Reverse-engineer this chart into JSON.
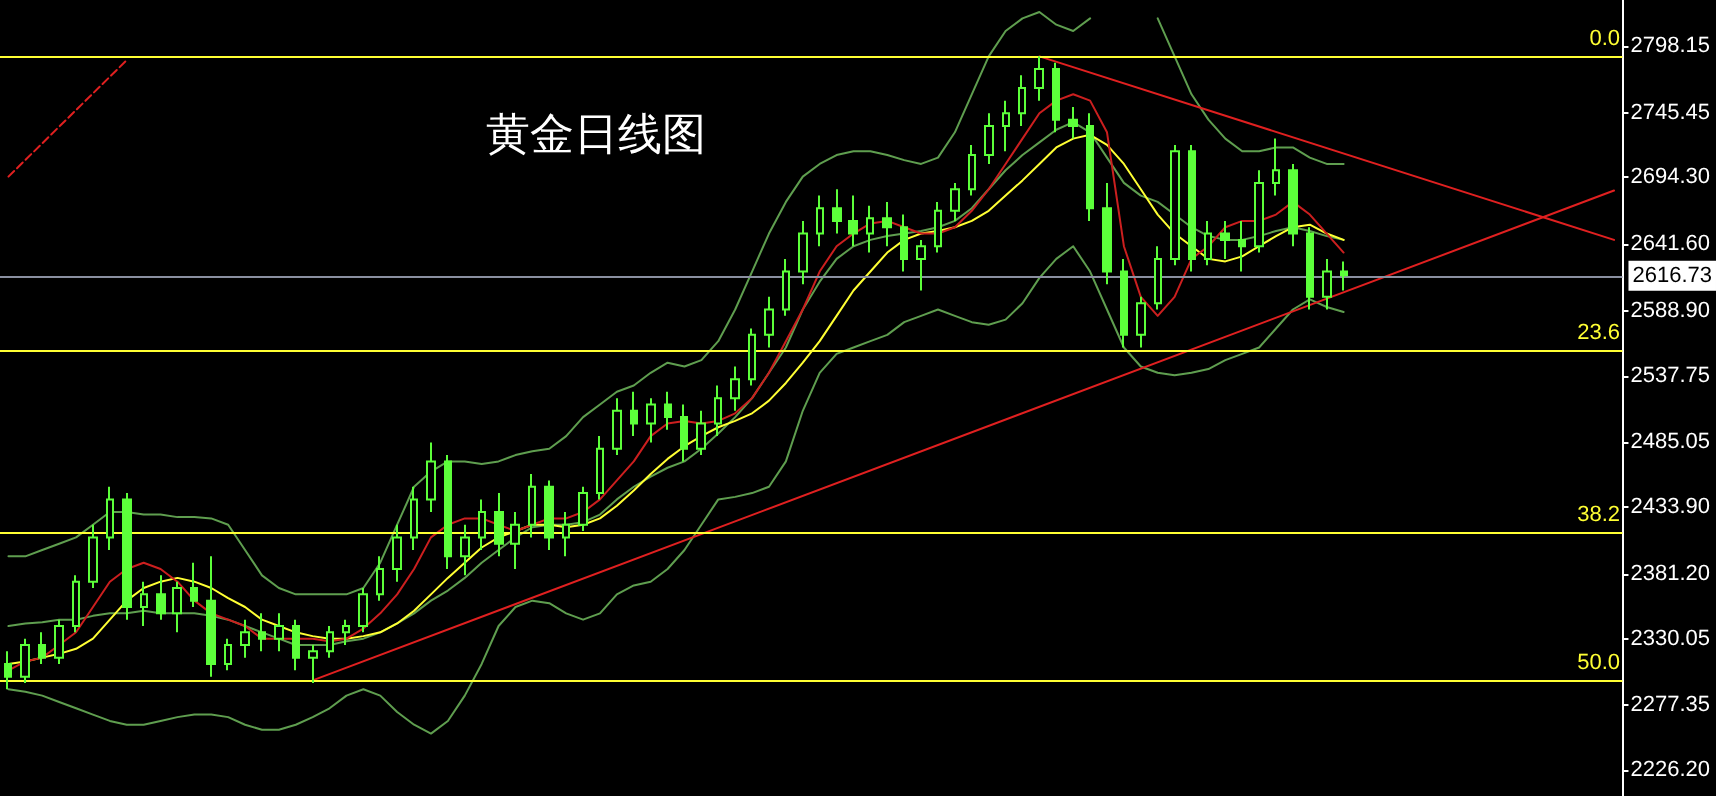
{
  "chart_data": {
    "type": "candlestick",
    "title": "黄金日线图",
    "color": "#5cff3a",
    "categories": [
      null,
      null,
      null,
      null,
      null,
      null,
      null,
      null,
      null,
      null,
      null,
      null,
      null,
      null,
      null,
      null,
      null,
      null,
      null,
      null,
      null,
      null,
      null,
      null,
      null,
      null,
      null,
      null,
      null,
      null,
      null,
      null,
      null,
      null,
      null,
      null,
      null,
      null,
      null,
      null,
      null,
      null,
      null,
      null,
      null,
      null,
      null,
      null,
      null,
      null,
      null,
      null,
      null,
      null,
      null,
      null,
      null,
      null,
      null,
      null,
      null,
      null,
      null,
      null,
      null,
      null,
      null,
      null,
      null,
      null,
      null,
      null,
      null,
      null,
      null,
      null,
      null,
      null,
      null,
      null,
      null,
      null,
      null,
      null,
      null,
      null,
      null,
      null,
      null,
      null,
      null,
      null,
      null,
      null,
      null,
      null
    ],
    "ohlc": [
      [
        2310,
        2320,
        2290,
        2300
      ],
      [
        2300,
        2330,
        2295,
        2325
      ],
      [
        2325,
        2335,
        2310,
        2315
      ],
      [
        2315,
        2345,
        2310,
        2340
      ],
      [
        2340,
        2380,
        2335,
        2375
      ],
      [
        2375,
        2420,
        2370,
        2410
      ],
      [
        2410,
        2450,
        2400,
        2440
      ],
      [
        2440,
        2445,
        2345,
        2355
      ],
      [
        2355,
        2375,
        2340,
        2365
      ],
      [
        2365,
        2380,
        2345,
        2350
      ],
      [
        2350,
        2375,
        2335,
        2370
      ],
      [
        2370,
        2390,
        2355,
        2360
      ],
      [
        2360,
        2395,
        2300,
        2310
      ],
      [
        2310,
        2330,
        2305,
        2325
      ],
      [
        2325,
        2345,
        2315,
        2335
      ],
      [
        2335,
        2350,
        2320,
        2330
      ],
      [
        2330,
        2350,
        2320,
        2340
      ],
      [
        2340,
        2345,
        2305,
        2315
      ],
      [
        2315,
        2325,
        2295,
        2320
      ],
      [
        2320,
        2340,
        2315,
        2335
      ],
      [
        2335,
        2345,
        2325,
        2340
      ],
      [
        2340,
        2370,
        2335,
        2365
      ],
      [
        2365,
        2395,
        2360,
        2385
      ],
      [
        2385,
        2420,
        2375,
        2410
      ],
      [
        2410,
        2450,
        2400,
        2440
      ],
      [
        2440,
        2485,
        2430,
        2470
      ],
      [
        2470,
        2475,
        2385,
        2395
      ],
      [
        2395,
        2420,
        2380,
        2410
      ],
      [
        2410,
        2440,
        2400,
        2430
      ],
      [
        2430,
        2445,
        2395,
        2405
      ],
      [
        2405,
        2430,
        2385,
        2420
      ],
      [
        2420,
        2460,
        2410,
        2450
      ],
      [
        2450,
        2455,
        2400,
        2410
      ],
      [
        2410,
        2430,
        2395,
        2420
      ],
      [
        2420,
        2450,
        2415,
        2445
      ],
      [
        2445,
        2490,
        2440,
        2480
      ],
      [
        2480,
        2520,
        2475,
        2510
      ],
      [
        2510,
        2525,
        2490,
        2500
      ],
      [
        2500,
        2520,
        2485,
        2515
      ],
      [
        2515,
        2525,
        2495,
        2505
      ],
      [
        2505,
        2515,
        2470,
        2480
      ],
      [
        2480,
        2510,
        2475,
        2500
      ],
      [
        2500,
        2530,
        2490,
        2520
      ],
      [
        2520,
        2545,
        2510,
        2535
      ],
      [
        2535,
        2575,
        2530,
        2570
      ],
      [
        2570,
        2600,
        2560,
        2590
      ],
      [
        2590,
        2630,
        2585,
        2620
      ],
      [
        2620,
        2660,
        2610,
        2650
      ],
      [
        2650,
        2680,
        2640,
        2670
      ],
      [
        2670,
        2685,
        2650,
        2660
      ],
      [
        2660,
        2680,
        2640,
        2650
      ],
      [
        2650,
        2672,
        2635,
        2662
      ],
      [
        2662,
        2675,
        2640,
        2655
      ],
      [
        2655,
        2665,
        2620,
        2630
      ],
      [
        2630,
        2645,
        2605,
        2640
      ],
      [
        2640,
        2675,
        2635,
        2668
      ],
      [
        2668,
        2690,
        2660,
        2685
      ],
      [
        2685,
        2720,
        2680,
        2712
      ],
      [
        2712,
        2745,
        2705,
        2735
      ],
      [
        2735,
        2755,
        2715,
        2745
      ],
      [
        2745,
        2775,
        2735,
        2765
      ],
      [
        2765,
        2790,
        2755,
        2780
      ],
      [
        2780,
        2785,
        2730,
        2740
      ],
      [
        2740,
        2750,
        2725,
        2735
      ],
      [
        2735,
        2745,
        2660,
        2670
      ],
      [
        2670,
        2690,
        2610,
        2620
      ],
      [
        2620,
        2630,
        2560,
        2570
      ],
      [
        2570,
        2600,
        2560,
        2595
      ],
      [
        2595,
        2640,
        2590,
        2630
      ],
      [
        2630,
        2720,
        2625,
        2715
      ],
      [
        2715,
        2720,
        2620,
        2630
      ],
      [
        2630,
        2660,
        2625,
        2650
      ],
      [
        2650,
        2660,
        2630,
        2645
      ],
      [
        2645,
        2660,
        2620,
        2640
      ],
      [
        2640,
        2700,
        2635,
        2690
      ],
      [
        2690,
        2725,
        2680,
        2700
      ],
      [
        2700,
        2705,
        2640,
        2650
      ],
      [
        2650,
        2655,
        2590,
        2600
      ],
      [
        2600,
        2630,
        2590,
        2620
      ],
      [
        2620,
        2628,
        2605,
        2617
      ],
      null,
      null,
      null,
      null,
      null,
      null,
      null,
      null,
      null,
      null,
      null,
      null,
      null,
      null,
      null,
      null
    ],
    "series": [
      {
        "type": "line",
        "color": "#5f9e4f",
        "values": [
          2395,
          2395,
          2400,
          2405,
          2410,
          2420,
          2430,
          2430,
          2428,
          2428,
          2426,
          2426,
          2425,
          2420,
          2400,
          2380,
          2370,
          2365,
          2365,
          2365,
          2365,
          2370,
          2390,
          2420,
          2450,
          2462,
          2470,
          2470,
          2468,
          2470,
          2475,
          2478,
          2480,
          2490,
          2505,
          2515,
          2525,
          2530,
          2540,
          2548,
          2545,
          2550,
          2565,
          2590,
          2620,
          2650,
          2675,
          2695,
          2705,
          2712,
          2715,
          2715,
          2712,
          2708,
          2705,
          2710,
          2730,
          2760,
          2790,
          2810,
          2820,
          2825,
          2815,
          2810,
          2820,
          null,
          null,
          null,
          2820,
          2790,
          2760,
          2740,
          2725,
          2715,
          2715,
          2718,
          2718,
          2710,
          2705,
          2705,
          null,
          null,
          null,
          null,
          null,
          null,
          null,
          null,
          null,
          null,
          null,
          null,
          null,
          null,
          null,
          null
        ]
      },
      {
        "type": "line",
        "color": "#5f9e4f",
        "values": [
          2340,
          2342,
          2343,
          2345,
          2345,
          2348,
          2350,
          2350,
          2352,
          2350,
          2350,
          2350,
          2348,
          2345,
          2340,
          2335,
          2330,
          2325,
          2325,
          2325,
          2328,
          2330,
          2335,
          2342,
          2350,
          2360,
          2368,
          2378,
          2390,
          2400,
          2410,
          2418,
          2420,
          2420,
          2422,
          2428,
          2440,
          2450,
          2458,
          2465,
          2470,
          2480,
          2492,
          2505,
          2520,
          2540,
          2560,
          2590,
          2612,
          2630,
          2640,
          2645,
          2648,
          2650,
          2652,
          2655,
          2660,
          2670,
          2685,
          2700,
          2712,
          2722,
          2732,
          2738,
          2730,
          2710,
          2690,
          2680,
          2675,
          2665,
          2655,
          2648,
          2645,
          2645,
          2648,
          2652,
          2655,
          2652,
          2648,
          2645,
          null,
          null,
          null,
          null,
          null,
          null,
          null,
          null,
          null,
          null,
          null,
          null,
          null,
          null,
          null,
          null
        ]
      },
      {
        "type": "line",
        "color": "#5f9e4f",
        "values": [
          2290,
          2288,
          2285,
          2280,
          2275,
          2270,
          2265,
          2262,
          2262,
          2265,
          2268,
          2270,
          2270,
          2268,
          2262,
          2258,
          2258,
          2262,
          2268,
          2275,
          2285,
          2290,
          2285,
          2272,
          2262,
          2255,
          2265,
          2285,
          2310,
          2340,
          2355,
          2360,
          2358,
          2350,
          2345,
          2350,
          2365,
          2372,
          2375,
          2385,
          2400,
          2420,
          2440,
          2442,
          2445,
          2450,
          2470,
          2510,
          2540,
          2555,
          2560,
          2565,
          2570,
          2580,
          2585,
          2590,
          2585,
          2580,
          2578,
          2582,
          2595,
          2615,
          2630,
          2640,
          2620,
          2590,
          2560,
          2545,
          2540,
          2538,
          2540,
          2543,
          2550,
          2555,
          2560,
          2575,
          2590,
          2598,
          2592,
          2588,
          null,
          null,
          null,
          null,
          null,
          null,
          null,
          null,
          null,
          null,
          null,
          null,
          null,
          null,
          null,
          null
        ]
      },
      {
        "type": "line",
        "color": "#ffff33",
        "values": [
          2310,
          2312,
          2315,
          2318,
          2322,
          2330,
          2345,
          2360,
          2370,
          2375,
          2378,
          2375,
          2370,
          2362,
          2355,
          2345,
          2340,
          2335,
          2332,
          2330,
          2330,
          2332,
          2335,
          2342,
          2352,
          2365,
          2378,
          2390,
          2402,
          2410,
          2415,
          2420,
          2420,
          2418,
          2420,
          2425,
          2435,
          2447,
          2460,
          2472,
          2482,
          2490,
          2497,
          2502,
          2508,
          2518,
          2532,
          2548,
          2565,
          2585,
          2605,
          2620,
          2635,
          2645,
          2650,
          2652,
          2655,
          2660,
          2668,
          2680,
          2692,
          2705,
          2718,
          2725,
          2728,
          2720,
          2705,
          2685,
          2665,
          2650,
          2640,
          2630,
          2628,
          2632,
          2640,
          2648,
          2655,
          2657,
          2650,
          2645,
          null,
          null,
          null,
          null,
          null,
          null,
          null,
          null,
          null,
          null,
          null,
          null,
          null,
          null,
          null,
          null
        ]
      },
      {
        "type": "line",
        "color": "#cc1f1f",
        "values": [
          2305,
          2312,
          2315,
          2325,
          2335,
          2355,
          2375,
          2385,
          2390,
          2385,
          2375,
          2360,
          2350,
          2345,
          2340,
          2330,
          2330,
          2330,
          2330,
          2328,
          2330,
          2338,
          2350,
          2365,
          2385,
          2410,
          2420,
          2425,
          2425,
          2420,
          2415,
          2420,
          2425,
          2425,
          2430,
          2440,
          2455,
          2470,
          2490,
          2500,
          2502,
          2500,
          2502,
          2508,
          2520,
          2540,
          2565,
          2590,
          2620,
          2640,
          2650,
          2658,
          2660,
          2655,
          2650,
          2650,
          2655,
          2668,
          2685,
          2705,
          2725,
          2745,
          2755,
          2760,
          2755,
          2730,
          2640,
          2600,
          2585,
          2600,
          2630,
          2640,
          2655,
          2660,
          2660,
          2665,
          2675,
          2665,
          2650,
          2635,
          null,
          null,
          null,
          null,
          null,
          null,
          null,
          null,
          null,
          null,
          null,
          null,
          null,
          null,
          null,
          null
        ]
      },
      {
        "type": "line",
        "color": "#e02020",
        "values": [
          null,
          null,
          null,
          null,
          null,
          null,
          null,
          null,
          null,
          null,
          null,
          null,
          null,
          null,
          null,
          null,
          null,
          null,
          2297,
          null,
          null,
          null,
          null,
          null,
          null,
          null,
          null,
          null,
          null,
          null,
          null,
          null,
          null,
          null,
          null,
          null,
          null,
          null,
          null,
          null,
          null,
          null,
          null,
          null,
          null,
          null,
          null,
          null,
          null,
          null,
          null,
          null,
          null,
          null,
          null,
          null,
          null,
          null,
          null,
          null,
          null,
          null,
          null,
          null,
          null,
          null,
          null,
          null,
          null,
          null,
          null,
          null,
          null,
          null,
          null,
          null,
          null,
          null,
          null,
          null,
          null,
          null,
          null,
          null,
          null,
          null,
          null,
          null,
          null,
          null,
          null,
          null,
          null,
          null,
          null,
          2684
        ]
      },
      {
        "type": "line",
        "color": "#e02020",
        "values": [
          null,
          null,
          null,
          null,
          null,
          null,
          null,
          null,
          null,
          null,
          null,
          null,
          null,
          null,
          null,
          null,
          null,
          null,
          null,
          null,
          null,
          null,
          null,
          null,
          null,
          null,
          null,
          null,
          null,
          null,
          null,
          null,
          null,
          null,
          null,
          null,
          null,
          null,
          null,
          null,
          null,
          null,
          null,
          null,
          null,
          null,
          null,
          null,
          null,
          null,
          null,
          null,
          null,
          null,
          null,
          null,
          null,
          null,
          null,
          null,
          null,
          2790,
          null,
          null,
          null,
          null,
          null,
          null,
          null,
          null,
          null,
          null,
          null,
          null,
          null,
          null,
          null,
          null,
          null,
          null,
          null,
          null,
          null,
          null,
          null,
          null,
          null,
          null,
          null,
          null,
          null,
          null,
          null,
          null,
          null,
          2645
        ]
      },
      {
        "type": "line",
        "color": "#e02020",
        "line_style": "dashed",
        "values": [
          2695,
          null,
          null,
          null,
          null,
          null,
          null,
          2787,
          null,
          null,
          null,
          null,
          null,
          null,
          null,
          null,
          null,
          null,
          null,
          null,
          null,
          null,
          null,
          null,
          null,
          null,
          null,
          null,
          null,
          null,
          null,
          null,
          null,
          null,
          null,
          null,
          null,
          null,
          null,
          null,
          null,
          null,
          null,
          null,
          null,
          null,
          null,
          null,
          null,
          null,
          null,
          null,
          null,
          null,
          null,
          null,
          null,
          null,
          null,
          null,
          null,
          null,
          null,
          null,
          null,
          null,
          null,
          null,
          null,
          null,
          null,
          null,
          null,
          null,
          null,
          null,
          null,
          null,
          null,
          null,
          null,
          null,
          null,
          null,
          null,
          null,
          null,
          null,
          null,
          null,
          null,
          null,
          null,
          null,
          null,
          null
        ]
      }
    ],
    "ylim": [
      2205.7,
      2834.5
    ],
    "yticks": [
      {
        "value": 2798.15,
        "label": "2798.15"
      },
      {
        "value": 2745.45,
        "label": "2745.45"
      },
      {
        "value": 2694.3,
        "label": "2694.30"
      },
      {
        "value": 2641.6,
        "label": "2641.60"
      },
      {
        "value": 2588.9,
        "label": "2588.90"
      },
      {
        "value": 2537.75,
        "label": "2537.75"
      },
      {
        "value": 2485.05,
        "label": "2485.05"
      },
      {
        "value": 2433.9,
        "label": "2433.90"
      },
      {
        "value": 2381.2,
        "label": "2381.20"
      },
      {
        "value": 2330.05,
        "label": "2330.05"
      },
      {
        "value": 2277.35,
        "label": "2277.35"
      },
      {
        "value": 2226.2,
        "label": "2226.20"
      }
    ],
    "ref_lines": [
      {
        "axis": "y",
        "value": 2790,
        "color": "#ffff33"
      },
      {
        "axis": "y",
        "value": 2558,
        "color": "#ffff33"
      },
      {
        "axis": "y",
        "value": 2414,
        "color": "#ffff33"
      },
      {
        "axis": "y",
        "value": 2297,
        "color": "#ffff33"
      },
      {
        "axis": "y",
        "value": 2616.73,
        "label": "2616.73",
        "color": "#8a8fa0"
      }
    ],
    "annotations": [
      {
        "text": "0.0",
        "y": 2790
      },
      {
        "text": "23.6",
        "y": 2558
      },
      {
        "text": "38.2",
        "y": 2414
      },
      {
        "text": "50.0",
        "y": 2297
      }
    ],
    "tick_labels": "y",
    "grid": false
  }
}
